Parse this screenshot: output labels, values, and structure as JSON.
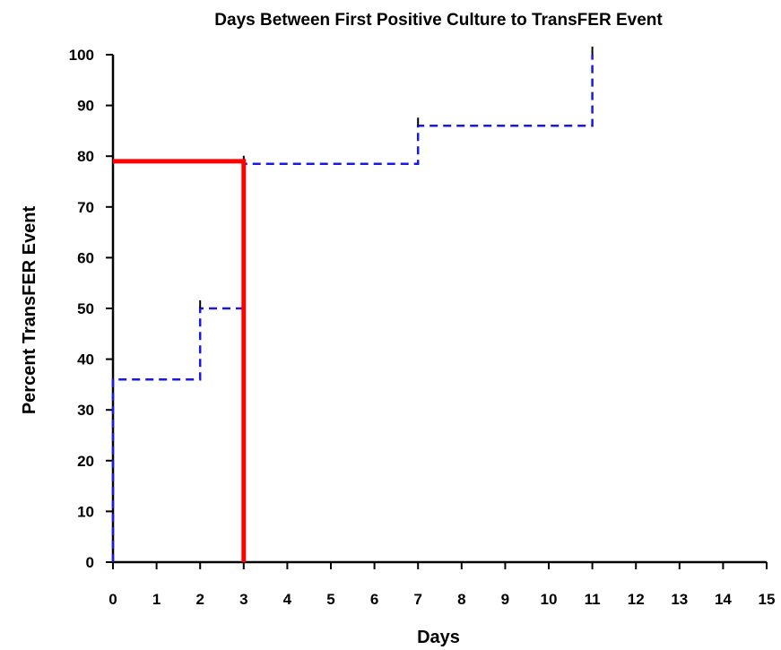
{
  "chart_data": {
    "type": "line",
    "title": "Days Between First Positive Culture to TransFER Event",
    "xlabel": "Days",
    "ylabel": "Percent  TransFER Event",
    "xlim": [
      0,
      15
    ],
    "ylim": [
      0,
      100
    ],
    "x_ticks": [
      "0",
      "1",
      "2",
      "3",
      "4",
      "5",
      "6",
      "7",
      "8",
      "9",
      "10",
      "11",
      "12",
      "13",
      "14",
      "15"
    ],
    "y_ticks": [
      "0",
      "10",
      "20",
      "30",
      "40",
      "50",
      "60",
      "70",
      "80",
      "90",
      "100"
    ],
    "grid": false,
    "series": [
      {
        "style": "step",
        "line": "dashed",
        "color": "#1a1adc",
        "points": [
          [
            0,
            0
          ],
          [
            0,
            36
          ],
          [
            2,
            36
          ],
          [
            2,
            50
          ],
          [
            3,
            50
          ],
          [
            3,
            78.5
          ],
          [
            7,
            78.5
          ],
          [
            7,
            86
          ],
          [
            11,
            86
          ],
          [
            11,
            100
          ]
        ],
        "censor_marks": [
          [
            2,
            50
          ],
          [
            3,
            78.5
          ],
          [
            7,
            86
          ],
          [
            11,
            100
          ]
        ]
      },
      {
        "style": "reference",
        "line": "solid",
        "color": "#ff0000",
        "points": [
          [
            0,
            79
          ],
          [
            3,
            79
          ],
          [
            3,
            0
          ]
        ]
      }
    ]
  }
}
